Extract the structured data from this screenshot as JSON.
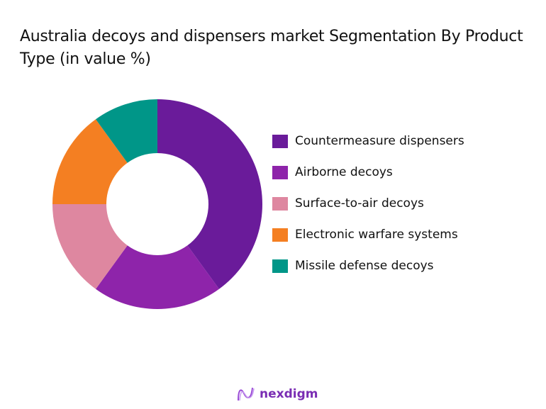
{
  "title": "Australia decoys and dispensers market Segmentation By Product Type (in value %)",
  "logo": {
    "text": "nexdigm",
    "icon": "nexdigm-wave-icon"
  },
  "chart_data": {
    "type": "pie",
    "variant": "donut",
    "title": "Australia decoys and dispensers market Segmentation By Product Type (in value %)",
    "categories": [
      "Countermeasure dispensers",
      "Airborne decoys",
      "Surface-to-air decoys",
      "Electronic warfare systems",
      "Missile defense decoys"
    ],
    "values": [
      40,
      20,
      15,
      15,
      10
    ],
    "colors": [
      "#6a1b9a",
      "#8e24aa",
      "#de87a0",
      "#f47f22",
      "#009688"
    ],
    "legend_position": "right",
    "start_angle": 0,
    "direction": "clockwise"
  },
  "legend": [
    {
      "label": "Countermeasure dispensers",
      "color": "#6a1b9a"
    },
    {
      "label": "Airborne decoys",
      "color": "#8e24aa"
    },
    {
      "label": "Surface-to-air decoys",
      "color": "#de87a0"
    },
    {
      "label": "Electronic warfare systems",
      "color": "#f47f22"
    },
    {
      "label": "Missile defense decoys",
      "color": "#009688"
    }
  ]
}
